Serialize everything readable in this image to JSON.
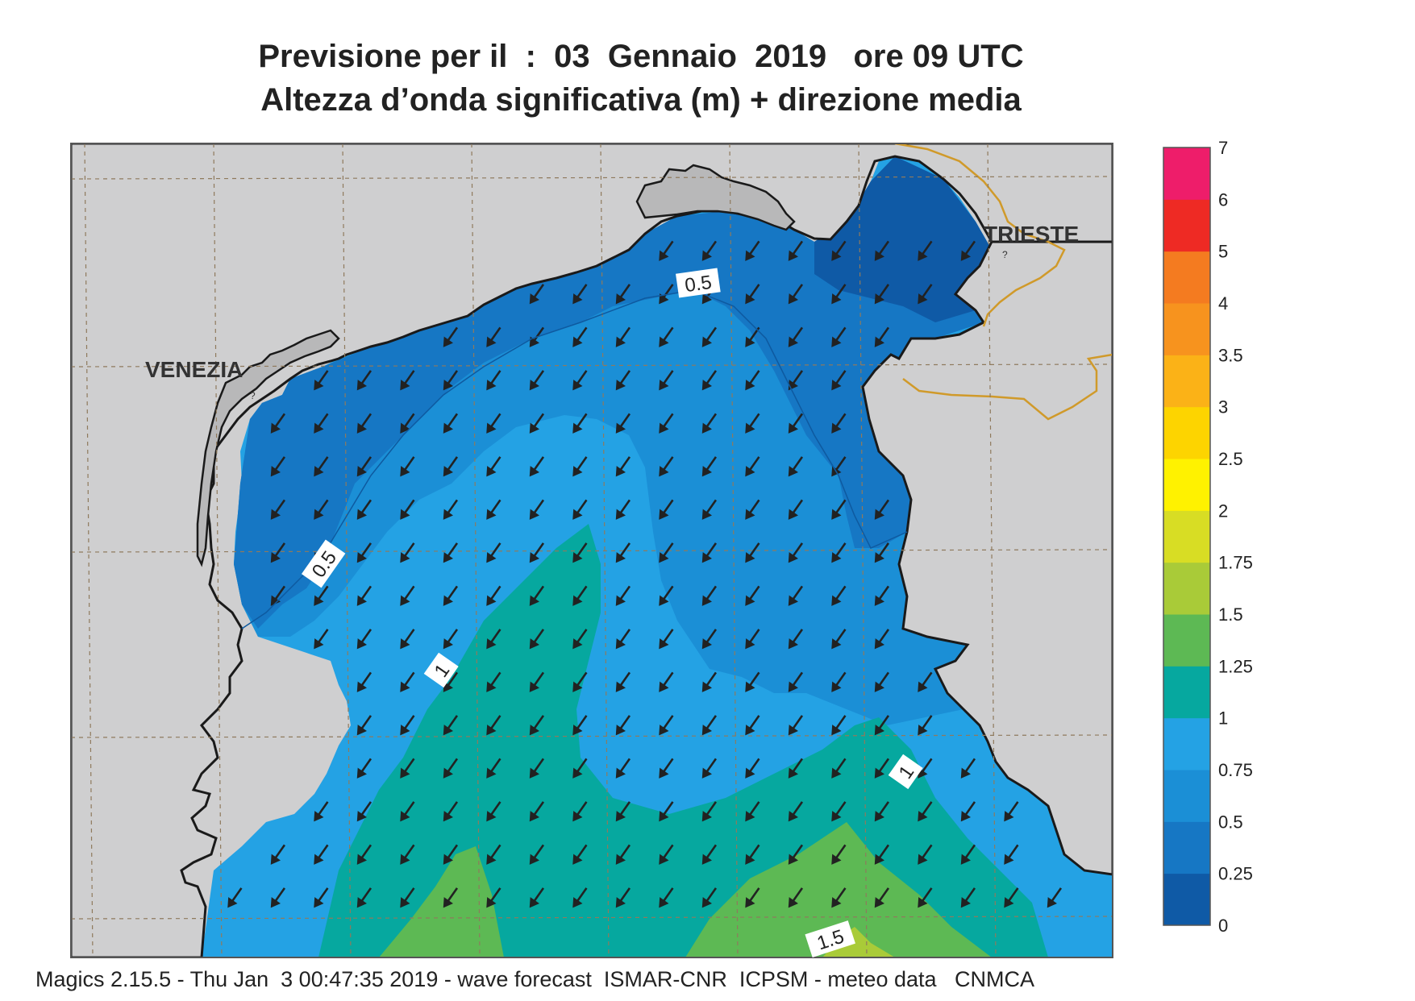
{
  "title": {
    "line1": "Previsione per il  :  03  Gennaio  2019   ore 09 UTC",
    "line2": "Altezza d’onda significativa (m) + direzione media"
  },
  "places": {
    "venezia": "VENEZIA",
    "trieste": "TRIESTE"
  },
  "contour_labels": [
    "0.5",
    "0.5",
    "1",
    "1",
    "1.5"
  ],
  "legend": {
    "levels": [
      "0",
      "0.25",
      "0.5",
      "0.75",
      "1",
      "1.25",
      "1.5",
      "1.75",
      "2",
      "2.5",
      "3",
      "3.5",
      "4",
      "5",
      "6",
      "7"
    ],
    "colors": [
      "#0f5aa6",
      "#1677c4",
      "#1b8fd6",
      "#24a2e4",
      "#06a89f",
      "#5db954",
      "#a9cb38",
      "#d8dd24",
      "#fff200",
      "#fdd400",
      "#fbb217",
      "#f7931e",
      "#f47b20",
      "#ee2a24",
      "#ee1d6a"
    ]
  },
  "colors": {
    "land": "#cfcfd0",
    "sea_base": "#24a2e4",
    "border": "#d09a2a",
    "arrows": "#222222"
  },
  "footer": "Magics 2.15.5 - Thu Jan  3 00:47:35 2019 - wave forecast  ISMAR-CNR  ICPSM - meteo data   CNMCA"
}
